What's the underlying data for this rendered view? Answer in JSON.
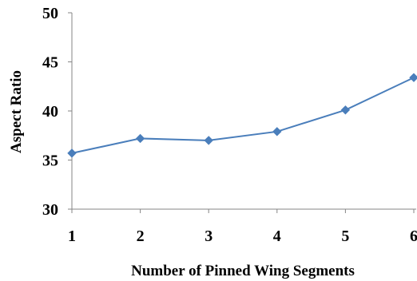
{
  "chart_data": {
    "type": "line",
    "title": "",
    "xlabel": "Number of Pinned Wing Segments",
    "ylabel": "Aspect Ratio",
    "x": [
      1,
      2,
      3,
      4,
      5,
      6
    ],
    "x_tick_labels": [
      "1",
      "2",
      "3",
      "4",
      "5",
      "6"
    ],
    "y_tick_labels": [
      "30",
      "35",
      "40",
      "45",
      "50"
    ],
    "ylim": [
      30,
      50
    ],
    "xlim": [
      1,
      6
    ],
    "grid": false,
    "legend": false,
    "series": [
      {
        "values": [
          35.7,
          37.2,
          37.0,
          37.9,
          40.1,
          43.4
        ],
        "color": "#4a7ebb",
        "marker": "diamond"
      }
    ]
  }
}
